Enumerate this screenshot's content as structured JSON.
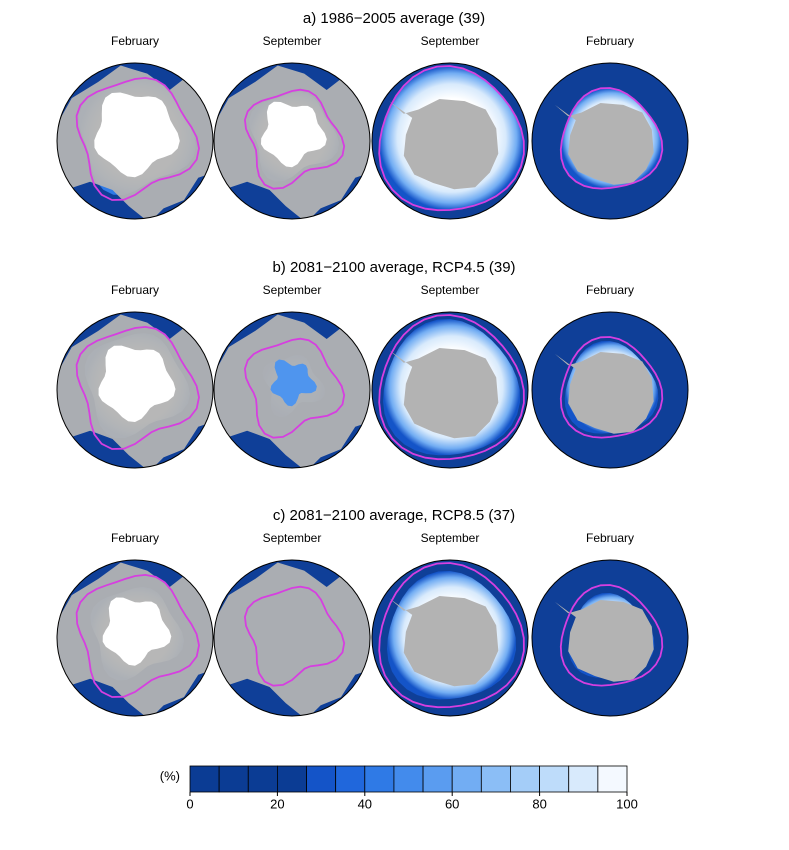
{
  "rows": [
    {
      "title": "a) 1986−2005 average (39)",
      "panels": [
        "February",
        "September",
        "September",
        "February"
      ]
    },
    {
      "title": "b) 2081−2100 average, RCP4.5 (39)",
      "panels": [
        "February",
        "September",
        "September",
        "February"
      ]
    },
    {
      "title": "c) 2081−2100 average, RCP8.5 (37)",
      "panels": [
        "February",
        "September",
        "September",
        "February"
      ]
    }
  ],
  "colorbar": {
    "label": "(%)",
    "lim": [
      0,
      100
    ],
    "ticks": [
      0,
      20,
      40,
      60,
      80,
      100
    ],
    "colors": [
      "#0b3c94",
      "#0b3c94",
      "#0b3c94",
      "#0b3c94",
      "#1454c8",
      "#2067dc",
      "#2f7ae6",
      "#438bec",
      "#5a9cf0",
      "#72adf3",
      "#8bbef6",
      "#a4cdf8",
      "#bedcfa",
      "#d8eafc",
      "#f4f9ff"
    ]
  }
}
